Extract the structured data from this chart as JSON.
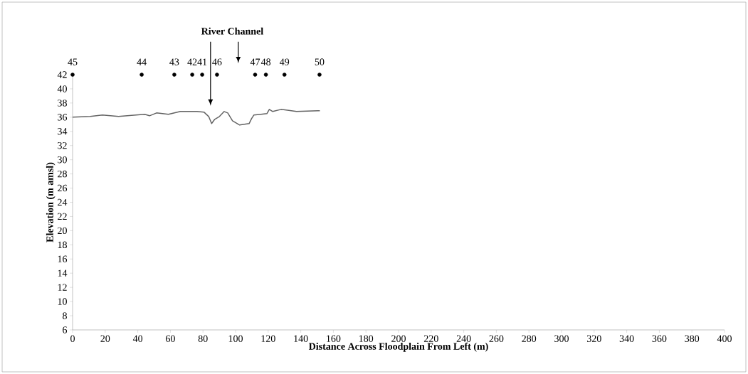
{
  "chart_data": {
    "type": "line",
    "xlabel": "Distance Across Floodplain From Left (m)",
    "ylabel": "Elevation (m amsl)",
    "annotations": [
      "River Channel",
      {
        "text": "45",
        "x": 0,
        "y": 42
      },
      {
        "text": "44",
        "x": 42.4,
        "y": 42
      },
      {
        "text": "43",
        "x": 62.4,
        "y": 42
      },
      {
        "text": "42",
        "x": 73.4,
        "y": 42
      },
      {
        "text": "41",
        "x": 79.5,
        "y": 42
      },
      {
        "text": "46",
        "x": 88.6,
        "y": 42
      },
      {
        "text": "47",
        "x": 112,
        "y": 42
      },
      {
        "text": "48",
        "x": 118.6,
        "y": 42
      },
      {
        "text": "49",
        "x": 130,
        "y": 42
      },
      {
        "text": "50",
        "x": 151.5,
        "y": 42
      }
    ],
    "series": [
      {
        "color": "#636363",
        "marker": "none",
        "x": [
          0,
          10.8,
          18.3,
          28.2,
          44.2,
          47.2,
          51.5,
          58.8,
          66.1,
          76.3,
          80.7,
          83.5,
          85.3,
          87.2,
          90.1,
          93.0,
          95.2,
          98.1,
          102.5,
          108.3,
          109.8,
          111.2,
          115.6,
          119.2,
          120.7,
          122.8,
          127.9,
          137.4,
          150.5,
          151.7
        ],
        "values": [
          36.0,
          36.1,
          36.3,
          36.1,
          36.4,
          36.2,
          36.6,
          36.4,
          36.8,
          36.8,
          36.7,
          36.1,
          35.1,
          35.7,
          36.1,
          36.8,
          36.6,
          35.5,
          34.9,
          35.1,
          35.8,
          36.3,
          36.4,
          36.5,
          37.1,
          36.8,
          37.1,
          36.8,
          36.9,
          36.9
        ]
      },
      {
        "type": "scatter",
        "color": "#000000",
        "marker": "circle",
        "x": [
          0,
          42.4,
          62.4,
          73.4,
          79.5,
          88.6,
          112,
          118.6,
          130,
          151.5
        ],
        "values": [
          42,
          42,
          42,
          42,
          42,
          42,
          42,
          42,
          42,
          42
        ]
      }
    ],
    "xlim": [
      0,
      400
    ],
    "xticks": [
      0,
      20,
      40,
      60,
      80,
      100,
      120,
      140,
      160,
      180,
      200,
      220,
      240,
      260,
      280,
      300,
      320,
      340,
      360,
      380,
      400
    ],
    "ylim": [
      6,
      42
    ],
    "yticks": [
      6,
      8,
      10,
      12,
      14,
      16,
      18,
      20,
      22,
      24,
      26,
      28,
      30,
      32,
      34,
      36,
      38,
      40,
      42
    ],
    "grid": false
  }
}
